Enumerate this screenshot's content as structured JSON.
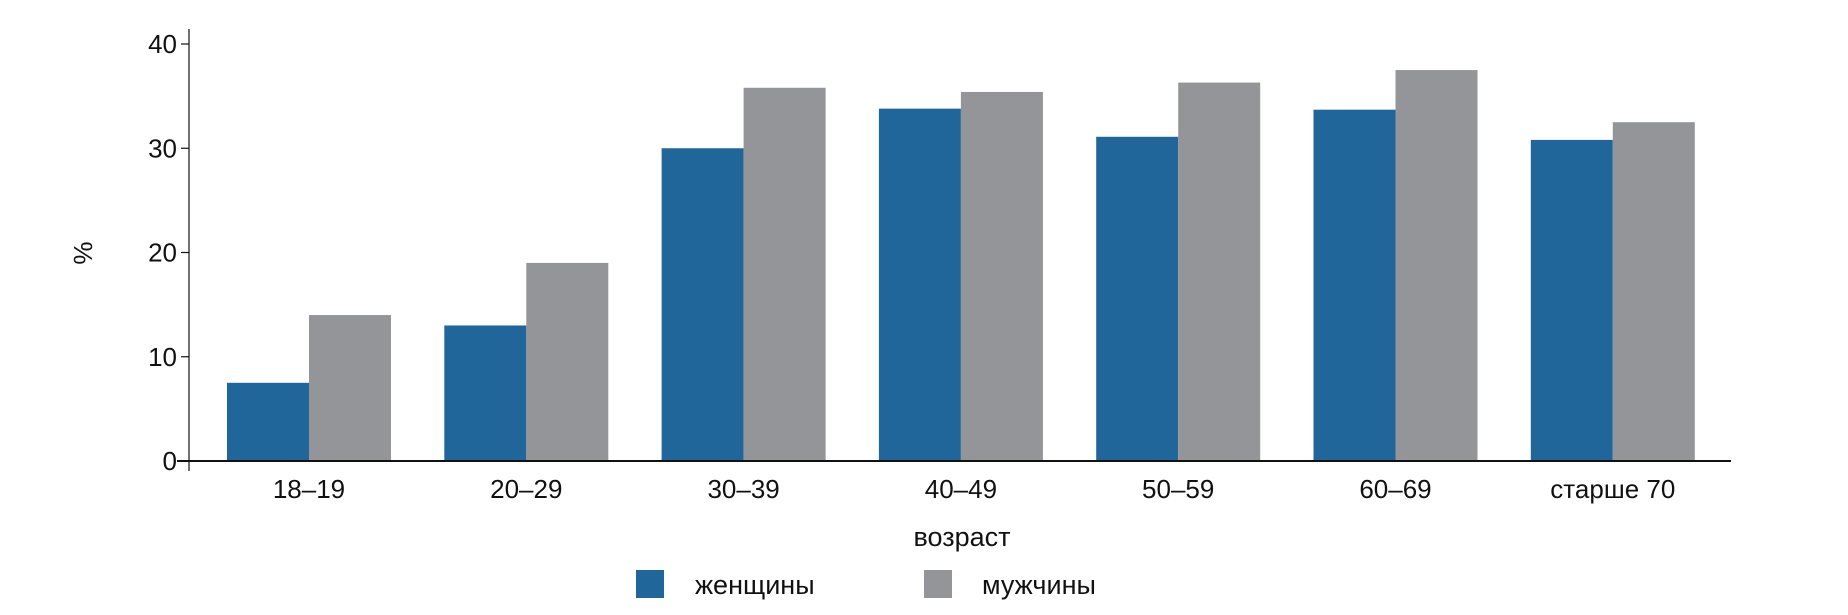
{
  "chart_data": {
    "type": "bar",
    "title": "",
    "xlabel": "возраст",
    "ylabel": "%",
    "ylim": [
      0,
      40
    ],
    "yticks": [
      0,
      10,
      20,
      30,
      40
    ],
    "grid": false,
    "legend_position": "bottom",
    "categories": [
      "18–19",
      "20–29",
      "30–39",
      "40–49",
      "50–59",
      "60–69",
      "старше 70"
    ],
    "series": [
      {
        "name": "женщины",
        "color": "#21669a",
        "values": [
          7.5,
          13,
          30,
          33.8,
          31.1,
          33.7,
          30.8
        ]
      },
      {
        "name": "мужчины",
        "color": "#939598",
        "values": [
          14,
          19,
          35.8,
          35.4,
          36.3,
          37.5,
          32.5
        ]
      }
    ]
  }
}
